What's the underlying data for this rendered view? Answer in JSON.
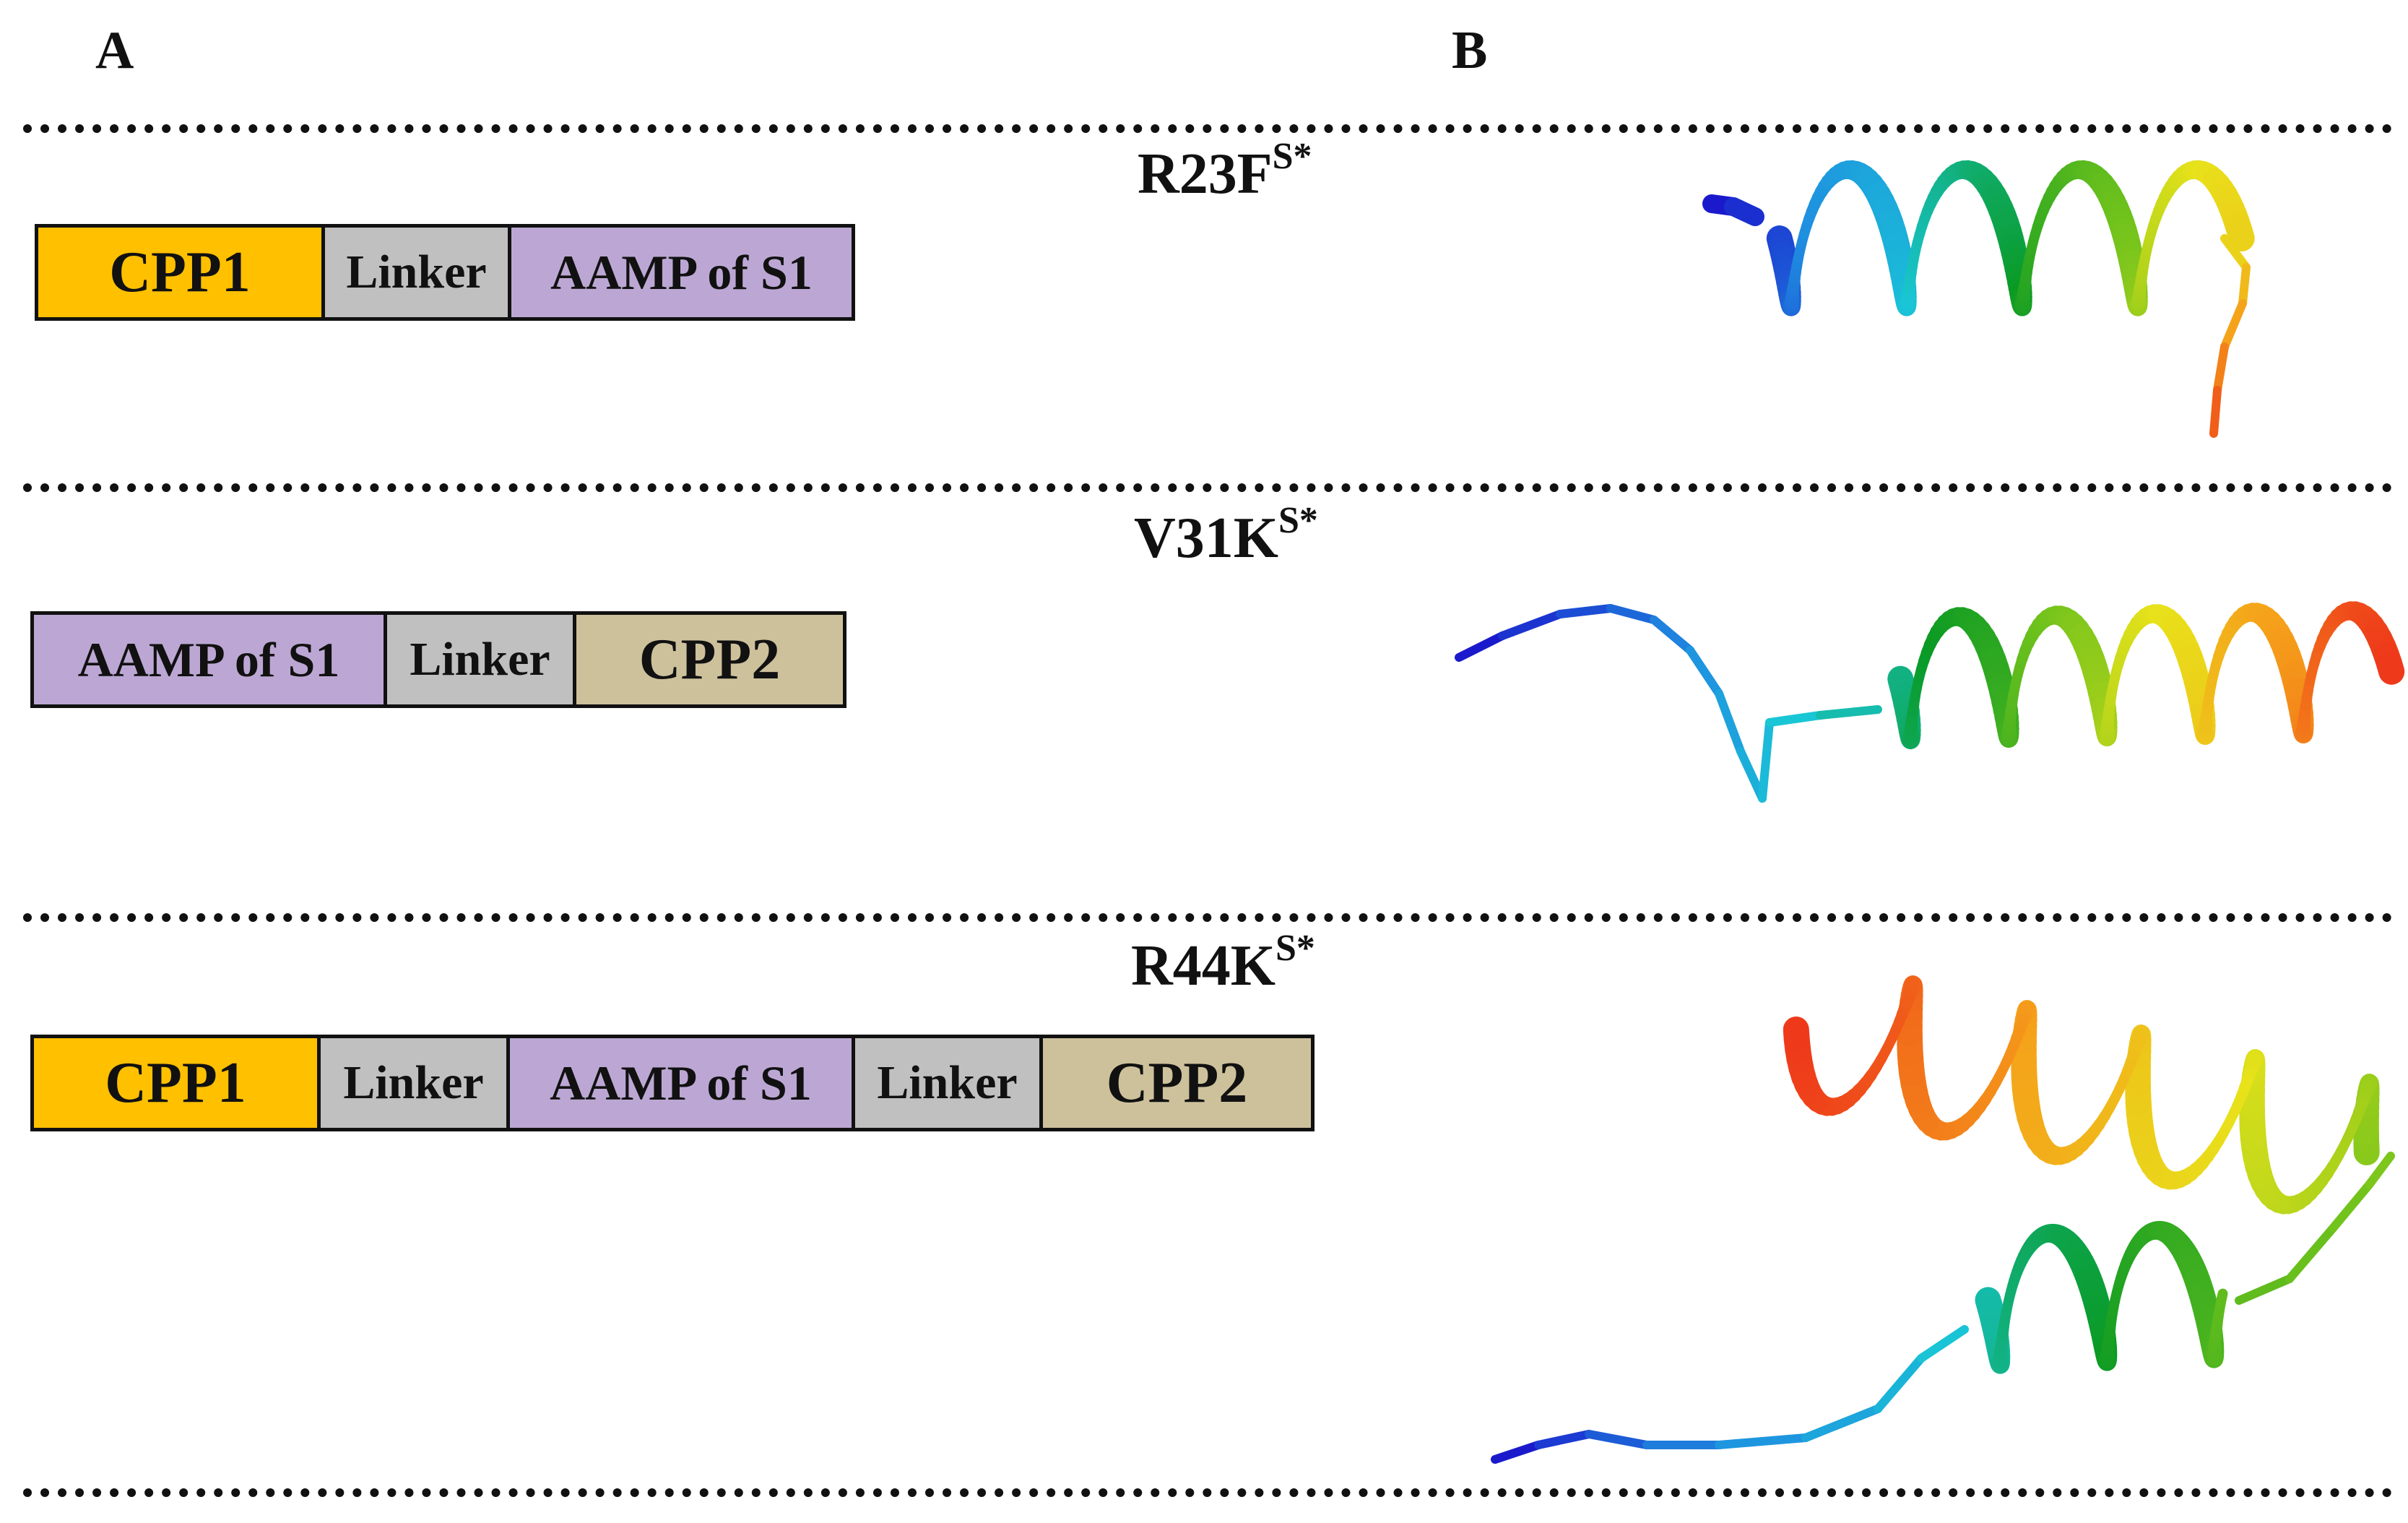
{
  "panels": {
    "a_label": "A",
    "b_label": "B"
  },
  "rows": [
    {
      "title": "R23F",
      "title_sup": "S*",
      "segments": [
        {
          "label": "CPP1",
          "color": "#FFC000"
        },
        {
          "label": "Linker",
          "color": "#C0C0C0"
        },
        {
          "label": "AAMP of S1",
          "color": "#BCA7D4"
        }
      ]
    },
    {
      "title": "V31K",
      "title_sup": "S*",
      "segments": [
        {
          "label": "AAMP of S1",
          "color": "#BCA7D4"
        },
        {
          "label": "Linker",
          "color": "#C0C0C0"
        },
        {
          "label": "CPP2",
          "color": "#CDC19C"
        }
      ]
    },
    {
      "title": "R44K",
      "title_sup": "S*",
      "segments": [
        {
          "label": "CPP1",
          "color": "#FFC000"
        },
        {
          "label": "Linker",
          "color": "#C0C0C0"
        },
        {
          "label": "AAMP of S1",
          "color": "#BCA7D4"
        },
        {
          "label": "Linker",
          "color": "#C0C0C0"
        },
        {
          "label": "CPP2",
          "color": "#CDC19C"
        }
      ]
    }
  ],
  "structure_colors": [
    "#1a1acc",
    "#1f8fe0",
    "#19c6d6",
    "#0a9a24",
    "#6fc21c",
    "#e8e21a",
    "#f5a01a",
    "#ee3a1a"
  ]
}
